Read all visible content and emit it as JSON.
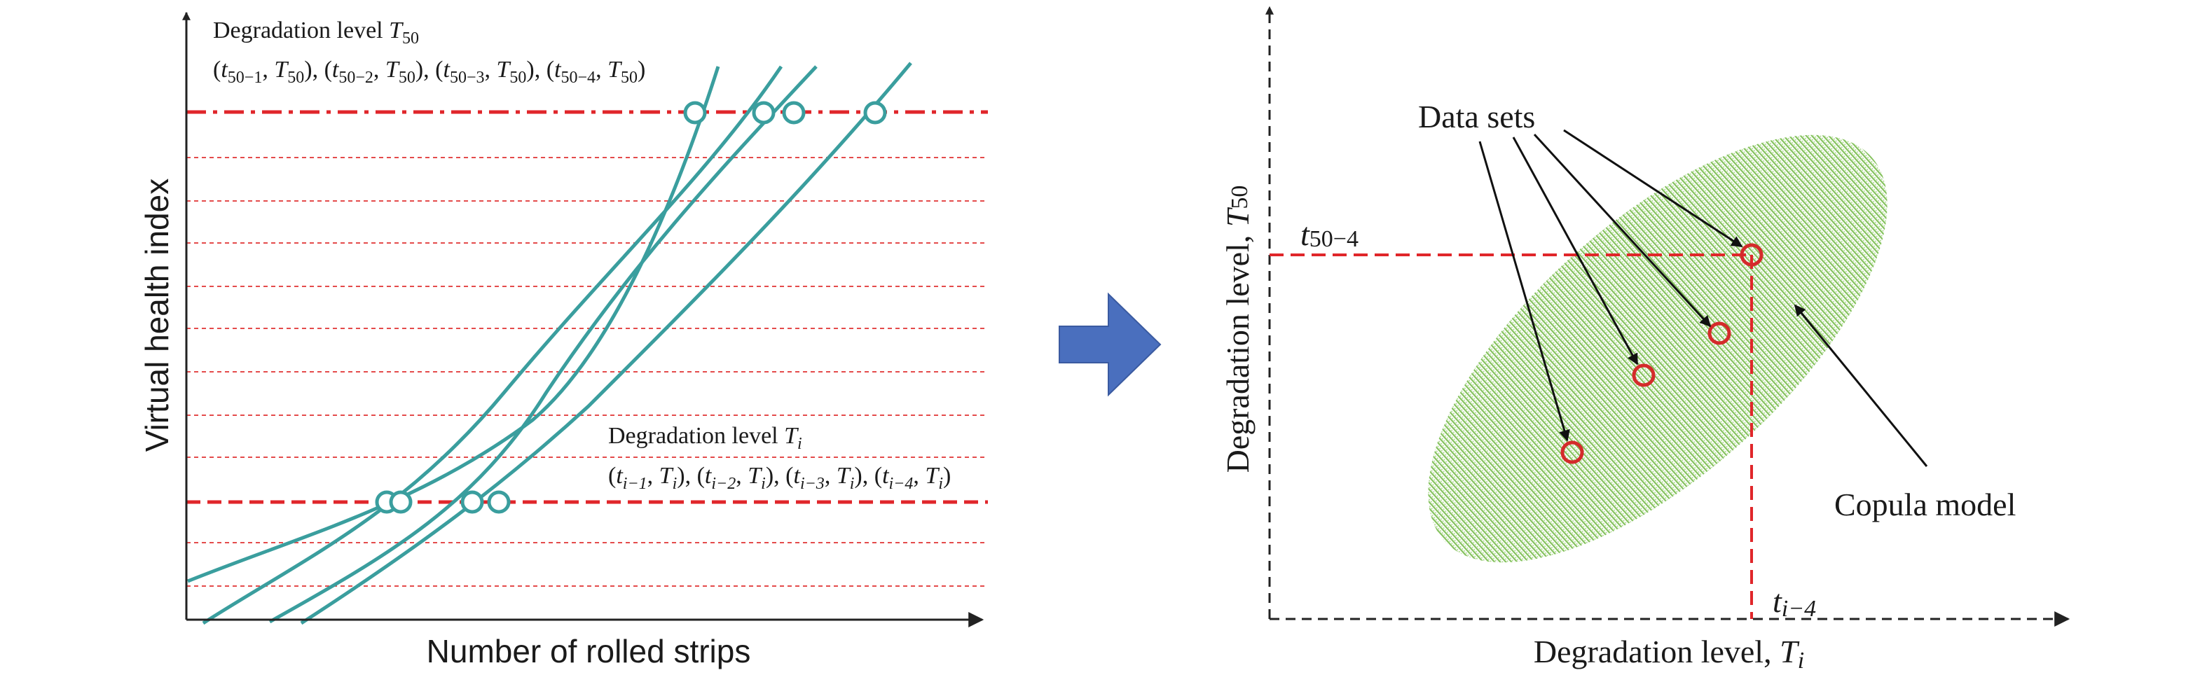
{
  "colors": {
    "curve": "#3a9e9e",
    "threshold": "#e0262a",
    "grid": "#e44b4b",
    "axis": "#222222",
    "arrow_fill": "#4a6fbe",
    "ellipse": "#7fbf50",
    "marker": "#d42b2b"
  },
  "left_panel": {
    "y_axis_title": "Virtual health index",
    "x_axis_title": "Number of rolled strips",
    "top_label": {
      "title_main": "Degradation level ",
      "title_var": "T",
      "title_sub": "50",
      "tuples": [
        {
          "t_sub": "50−1",
          "T_sub": "50"
        },
        {
          "t_sub": "50−2",
          "T_sub": "50"
        },
        {
          "t_sub": "50−3",
          "T_sub": "50"
        },
        {
          "t_sub": "50−4",
          "T_sub": "50"
        }
      ]
    },
    "bottom_label": {
      "title_main": "Degradation level ",
      "title_var": "T",
      "title_sub": "i",
      "tuples": [
        {
          "t_sub": "i−1",
          "T_sub": "i"
        },
        {
          "t_sub": "i−2",
          "T_sub": "i"
        },
        {
          "t_sub": "i−3",
          "T_sub": "i"
        },
        {
          "t_sub": "i−4",
          "T_sub": "i"
        }
      ]
    },
    "curve_count": 4,
    "grid_line_count": 10
  },
  "transition_arrow": {
    "icon": "right-arrow-icon"
  },
  "right_panel": {
    "y_axis_title_main": "Degradation level, ",
    "y_axis_title_var": "T",
    "y_axis_title_sub": "50",
    "x_axis_title_main": "Degradation level, ",
    "x_axis_title_var": "T",
    "x_axis_title_sub": "i",
    "y_marker_label_var": "t",
    "y_marker_label_sub": "50−4",
    "x_marker_label_var": "t",
    "x_marker_label_sub": "i−4",
    "data_sets_label": "Data sets",
    "copula_label": "Copula model",
    "data_point_count": 4
  }
}
